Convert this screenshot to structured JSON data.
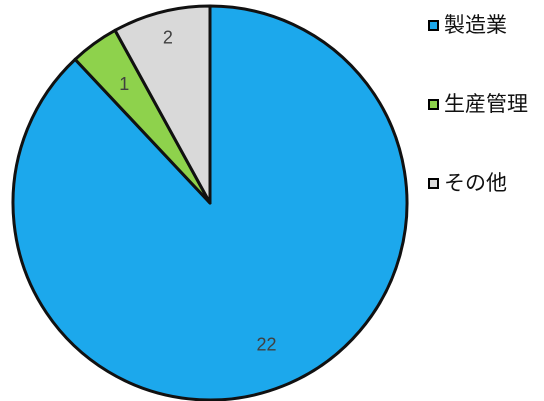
{
  "chart_data": {
    "type": "pie",
    "categories": [
      "製造業",
      "生産管理",
      "その他"
    ],
    "values": [
      22,
      1,
      2
    ],
    "colors": [
      "#1ca8ec",
      "#8ed24c",
      "#d9d9d9"
    ],
    "data_labels": [
      "22",
      "1",
      "2"
    ],
    "start_angle_deg": 0,
    "direction": "clockwise",
    "edge_color": "#111111",
    "legend": "right",
    "title": ""
  }
}
